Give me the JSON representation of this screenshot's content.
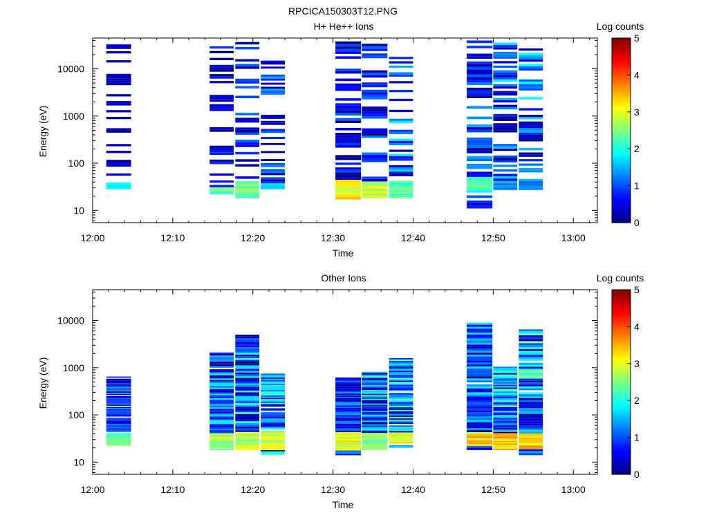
{
  "figure_title": "RPCICA150303T12.PNG",
  "chart_data": [
    {
      "type": "heatmap",
      "title": "H+ He++ Ions",
      "xlabel": "Time",
      "ylabel": "Energy (eV)",
      "x_tick_labels": [
        "12:00",
        "12:10",
        "12:20",
        "12:30",
        "12:40",
        "12:50",
        "13:00"
      ],
      "x_range_minutes": [
        0,
        63
      ],
      "y_scale": "log",
      "y_range": [
        5.5,
        45000
      ],
      "y_tick_labels": [
        "10",
        "100",
        "1000",
        "10000"
      ],
      "colorbar": {
        "label": "Log counts",
        "range": [
          0,
          5
        ],
        "tick_labels": [
          "0",
          "1",
          "2",
          "3",
          "4",
          "5"
        ]
      },
      "data": [
        {
          "t0": 1.7,
          "t1": 4.8,
          "emin": 28,
          "emax": 33000,
          "low": [
            28,
            37,
            2.0
          ],
          "fill": 0.35,
          "cmax": 0.6
        },
        {
          "t0": 14.6,
          "t1": 17.6,
          "emin": 22,
          "emax": 30000,
          "low": [
            22,
            31,
            2.6
          ],
          "fill": 0.45,
          "cmax": 0.9
        },
        {
          "t0": 17.8,
          "t1": 20.8,
          "emin": 18,
          "emax": 37000,
          "low": [
            18,
            42,
            2.6
          ],
          "fill": 0.45,
          "cmax": 1.2
        },
        {
          "t0": 21.0,
          "t1": 24.0,
          "emin": 28,
          "emax": 15000,
          "low": [
            28,
            37,
            2.0
          ],
          "fill": 0.55,
          "cmax": 1.6
        },
        {
          "t0": 30.3,
          "t1": 33.5,
          "emin": 17,
          "emax": 38000,
          "low": [
            17,
            43,
            3.4
          ],
          "fill": 0.5,
          "cmax": 1.2
        },
        {
          "t0": 33.6,
          "t1": 36.8,
          "emin": 18,
          "emax": 34000,
          "low": [
            18,
            43,
            3.0
          ],
          "fill": 0.45,
          "cmax": 1.3
        },
        {
          "t0": 37.0,
          "t1": 40.0,
          "emin": 18,
          "emax": 18000,
          "low": [
            18,
            43,
            2.4
          ],
          "fill": 0.55,
          "cmax": 1.9
        },
        {
          "t0": 46.7,
          "t1": 49.9,
          "emin": 11,
          "emax": 40000,
          "low": [
            24,
            48,
            2.3
          ],
          "fill": 0.55,
          "cmax": 1.5
        },
        {
          "t0": 50.0,
          "t1": 53.0,
          "emin": 27,
          "emax": 36000,
          "low": [
            27,
            43,
            1.5
          ],
          "fill": 0.6,
          "cmax": 1.9
        },
        {
          "t0": 53.2,
          "t1": 56.2,
          "emin": 27,
          "emax": 27000,
          "low": [
            27,
            43,
            1.3
          ],
          "fill": 0.6,
          "cmax": 2.0
        }
      ]
    },
    {
      "type": "heatmap",
      "title": "Other Ions",
      "xlabel": "Time",
      "ylabel": "Energy (eV)",
      "x_tick_labels": [
        "12:00",
        "12:10",
        "12:20",
        "12:30",
        "12:40",
        "12:50",
        "13:00"
      ],
      "x_range_minutes": [
        0,
        63
      ],
      "y_scale": "log",
      "y_range": [
        5.5,
        45000
      ],
      "y_tick_labels": [
        "10",
        "100",
        "1000",
        "10000"
      ],
      "colorbar": {
        "label": "Log counts",
        "range": [
          0,
          5
        ],
        "tick_labels": [
          "0",
          "1",
          "2",
          "3",
          "4",
          "5"
        ]
      },
      "data": [
        {
          "t0": 1.7,
          "t1": 4.8,
          "emin": 22,
          "emax": 650,
          "low": [
            22,
            42,
            2.6
          ],
          "fill": 0.9,
          "cmax": 1.6
        },
        {
          "t0": 14.6,
          "t1": 17.6,
          "emin": 18,
          "emax": 2100,
          "low": [
            18,
            42,
            2.9
          ],
          "fill": 0.95,
          "cmax": 1.9
        },
        {
          "t0": 17.8,
          "t1": 20.8,
          "emin": 18,
          "emax": 5000,
          "low": [
            18,
            42,
            3.0
          ],
          "fill": 0.95,
          "cmax": 2.2
        },
        {
          "t0": 21.0,
          "t1": 24.0,
          "emin": 14,
          "emax": 750,
          "low": [
            18,
            42,
            3.1
          ],
          "fill": 0.95,
          "cmax": 2.3
        },
        {
          "t0": 30.3,
          "t1": 33.5,
          "emin": 14,
          "emax": 620,
          "low": [
            18,
            42,
            3.2
          ],
          "fill": 1.0,
          "cmax": 1.6
        },
        {
          "t0": 33.6,
          "t1": 36.8,
          "emin": 18,
          "emax": 820,
          "low": [
            18,
            42,
            2.8
          ],
          "fill": 1.0,
          "cmax": 2.1
        },
        {
          "t0": 37.0,
          "t1": 40.0,
          "emin": 20,
          "emax": 1600,
          "low": [
            24,
            42,
            3.3
          ],
          "fill": 0.95,
          "cmax": 2.4
        },
        {
          "t0": 46.7,
          "t1": 49.9,
          "emin": 18,
          "emax": 9000,
          "low": [
            22,
            42,
            3.5
          ],
          "fill": 0.95,
          "cmax": 1.9
        },
        {
          "t0": 50.0,
          "t1": 53.0,
          "emin": 18,
          "emax": 1050,
          "low": [
            18,
            42,
            3.6
          ],
          "fill": 1.0,
          "cmax": 2.5
        },
        {
          "t0": 53.2,
          "t1": 56.2,
          "emin": 14,
          "emax": 6500,
          "low": [
            18,
            42,
            3.6
          ],
          "fill": 0.95,
          "cmax": 2.6
        }
      ]
    }
  ]
}
